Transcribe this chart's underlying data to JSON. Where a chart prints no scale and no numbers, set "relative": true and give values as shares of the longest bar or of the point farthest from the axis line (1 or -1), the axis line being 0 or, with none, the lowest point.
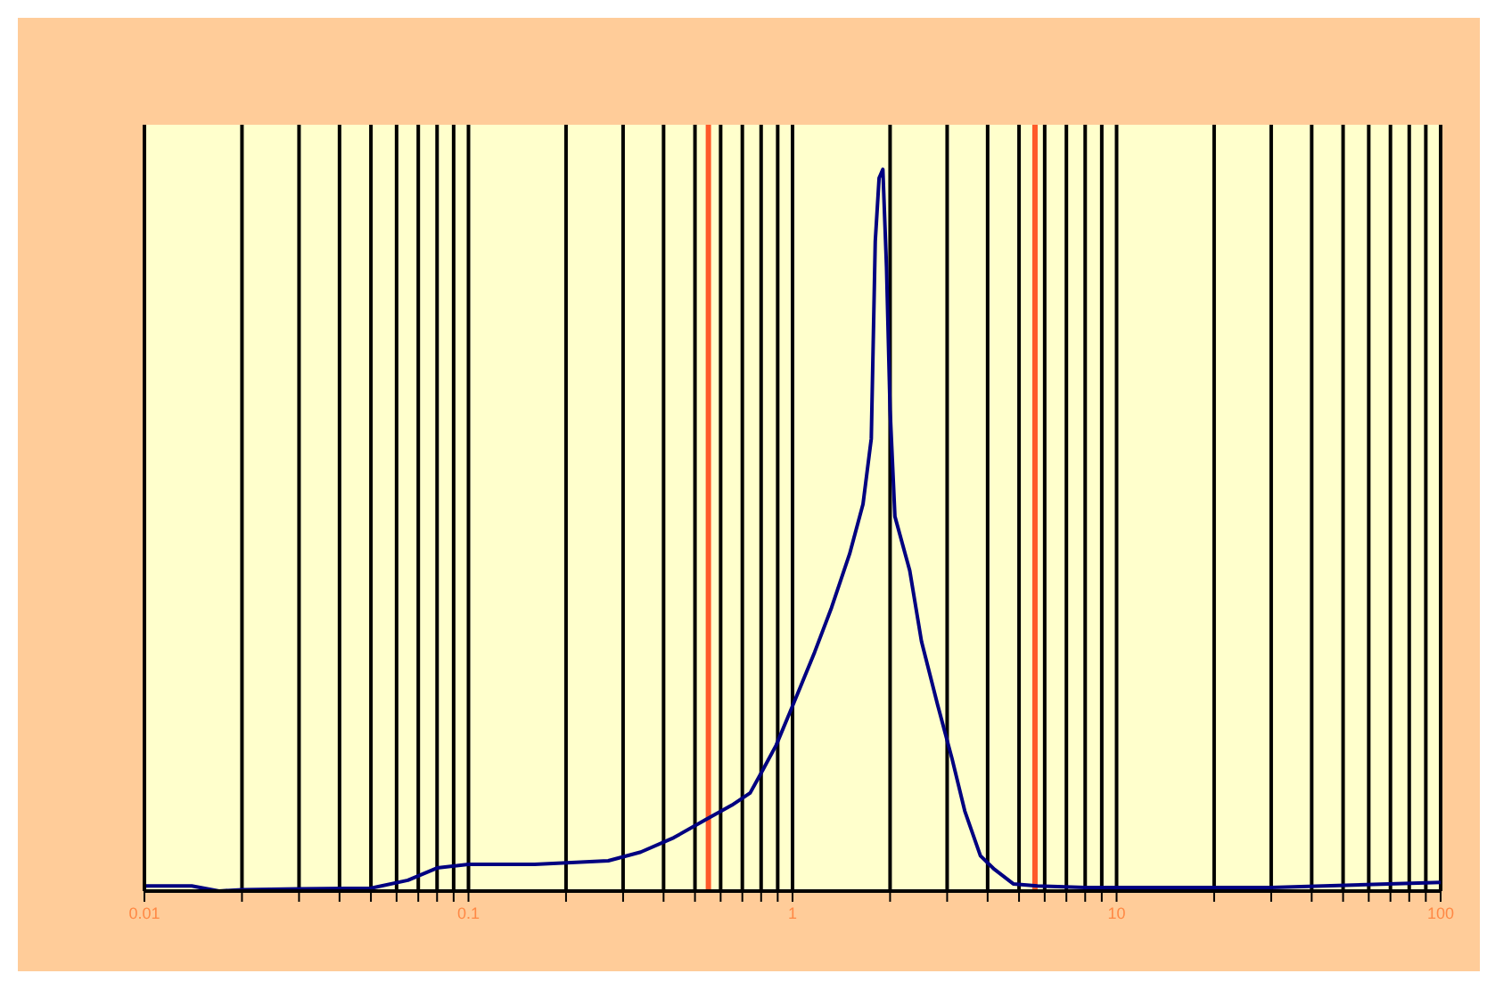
{
  "chart_data": {
    "type": "line",
    "relative": true,
    "log": "x",
    "xlim": [
      0.01,
      100
    ],
    "xticks": [
      {
        "value": 0.01,
        "label": "0.01"
      },
      {
        "value": 0.02,
        "label": null
      },
      {
        "value": 0.03,
        "label": null
      },
      {
        "value": 0.04,
        "label": null
      },
      {
        "value": 0.05,
        "label": null
      },
      {
        "value": 0.06,
        "label": null
      },
      {
        "value": 0.07,
        "label": null
      },
      {
        "value": 0.08,
        "label": null
      },
      {
        "value": 0.09,
        "label": null
      },
      {
        "value": 0.1,
        "label": "0.1"
      },
      {
        "value": 0.2,
        "label": null
      },
      {
        "value": 0.3,
        "label": null
      },
      {
        "value": 0.4,
        "label": null
      },
      {
        "value": 0.5,
        "label": null
      },
      {
        "value": 0.6,
        "label": null
      },
      {
        "value": 0.7,
        "label": null
      },
      {
        "value": 0.8,
        "label": null
      },
      {
        "value": 0.9,
        "label": null
      },
      {
        "value": 1,
        "label": "1"
      },
      {
        "value": 2,
        "label": null
      },
      {
        "value": 3,
        "label": null
      },
      {
        "value": 4,
        "label": null
      },
      {
        "value": 5,
        "label": null
      },
      {
        "value": 6,
        "label": null
      },
      {
        "value": 7,
        "label": null
      },
      {
        "value": 8,
        "label": null
      },
      {
        "value": 9,
        "label": null
      },
      {
        "value": 10,
        "label": "10"
      },
      {
        "value": 20,
        "label": null
      },
      {
        "value": 30,
        "label": null
      },
      {
        "value": 40,
        "label": null
      },
      {
        "value": 50,
        "label": null
      },
      {
        "value": 60,
        "label": null
      },
      {
        "value": 70,
        "label": null
      },
      {
        "value": 80,
        "label": null
      },
      {
        "value": 90,
        "label": null
      },
      {
        "value": 100,
        "label": "100"
      }
    ],
    "grid": "x",
    "tick_labels": "x",
    "marker": "none",
    "line_style": "solid",
    "ref_lines": [
      {
        "axis": "x",
        "value": 0.55,
        "color": "#ff5a2a"
      },
      {
        "axis": "x",
        "value": 5.6,
        "color": "#ff5a2a"
      }
    ],
    "series": [
      {
        "color": "#000080",
        "x": [
          0.01,
          0.014,
          0.017,
          0.02,
          0.03,
          0.05,
          0.065,
          0.08,
          0.1,
          0.16,
          0.27,
          0.34,
          0.43,
          0.54,
          0.65,
          0.74,
          0.81,
          0.89,
          0.98,
          1.06,
          1.17,
          1.32,
          1.5,
          1.65,
          1.75,
          1.8,
          1.85,
          1.9,
          1.95,
          2.0,
          2.07,
          2.3,
          2.5,
          2.8,
          3.1,
          3.4,
          3.8,
          4.2,
          4.8,
          5.7,
          8,
          11,
          30,
          100
        ],
        "values": [
          0.007,
          0.007,
          0,
          0.002,
          0.003,
          0.004,
          0.015,
          0.032,
          0.037,
          0.037,
          0.042,
          0.054,
          0.074,
          0.099,
          0.119,
          0.136,
          0.168,
          0.202,
          0.247,
          0.284,
          0.331,
          0.393,
          0.467,
          0.536,
          0.627,
          0.9,
          0.988,
          1,
          0.864,
          0.667,
          0.519,
          0.444,
          0.346,
          0.259,
          0.185,
          0.111,
          0.049,
          0.03,
          0.01,
          0.007,
          0.005,
          0.005,
          0.005,
          0.012
        ]
      }
    ]
  }
}
